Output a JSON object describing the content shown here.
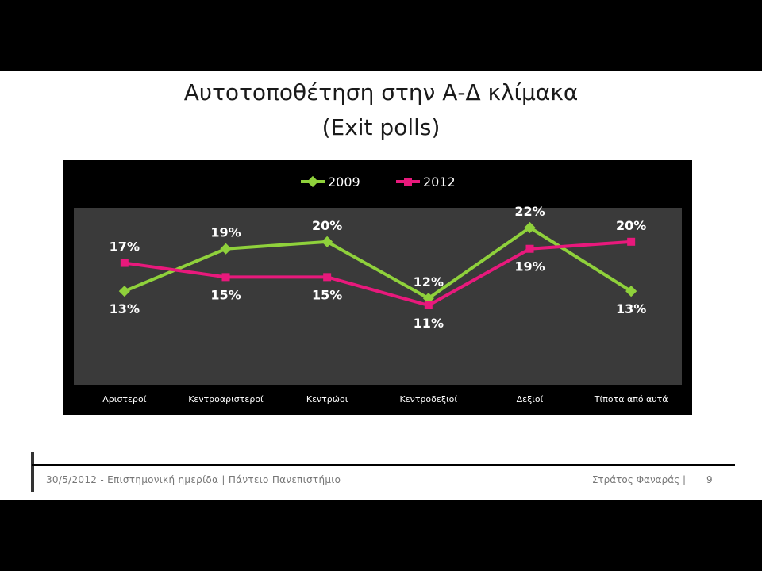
{
  "slide": {
    "title_line1": "Αυτοτοποθέτηση στην Α-Δ κλίμακα",
    "title_line2": "(Exit polls)"
  },
  "footer": {
    "left_text": "30/5/2012 - Επιστημονική ημερίδα | Πάντειο Πανεπιστήμιο",
    "author": "Στράτος Φαναράς |",
    "page": "9"
  },
  "chart_data": {
    "type": "line",
    "categories": [
      "Αριστεροί",
      "Κεντροαριστεροί",
      "Κεντρώοι",
      "Κεντροδεξιοί",
      "Δεξιοί",
      "Τίποτα από αυτά"
    ],
    "series": [
      {
        "name": "2009",
        "values": [
          13,
          19,
          20,
          12,
          22,
          13
        ],
        "labels": [
          "13%",
          "19%",
          "20%",
          "12%",
          "22%",
          "13%"
        ],
        "color": "#8fd13b"
      },
      {
        "name": "2012",
        "values": [
          17,
          15,
          15,
          11,
          19,
          20
        ],
        "labels": [
          "17%",
          "15%",
          "15%",
          "11%",
          "19%",
          "20%"
        ],
        "color": "#e8197c"
      }
    ],
    "ylim": [
      0,
      25
    ],
    "grid": false,
    "legend": "top",
    "plot_background": "#3a3a3a",
    "background": "#000000"
  }
}
